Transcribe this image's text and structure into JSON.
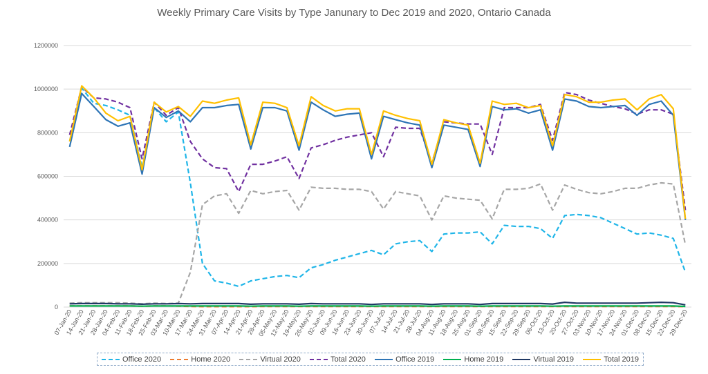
{
  "chart_data": {
    "type": "line",
    "title": "Weekly Primary Care Visits by Type Janunary to Dec 2019 and 2020, Ontario Canada",
    "xlabel": "",
    "ylabel": "",
    "ylim": [
      0,
      1200000
    ],
    "y_ticks": [
      "0",
      "200000",
      "400000",
      "600000",
      "800000",
      "1000000",
      "1200000"
    ],
    "grid": "horizontal",
    "legend_position": "bottom",
    "categories": [
      "07-Jan-20",
      "14-Jan-20",
      "21-Jan-20",
      "28-Jan-20",
      "04-Feb-20",
      "11-Feb-20",
      "18-Feb-20",
      "25-Feb-20",
      "03-Mar-20",
      "10-Mar-20",
      "17-Mar-20",
      "24-Mar-20",
      "31-Mar-20",
      "07-Apr-20",
      "14-Apr-20",
      "21-Apr-20",
      "28-Apr-20",
      "05-May-20",
      "12-May-20",
      "19-May-20",
      "26-May-20",
      "02-Jun-20",
      "09-Jun-20",
      "16-Jun-20",
      "23-Jun-20",
      "30-Jun-20",
      "07-Jul-20",
      "14-Jul-20",
      "21-Jul-20",
      "28-Jul-20",
      "04-Aug-20",
      "11-Aug-20",
      "18-Aug-20",
      "25-Aug-20",
      "01-Sep-20",
      "08-Sep-20",
      "15-Sep-20",
      "22-Sep-20",
      "29-Sep-20",
      "06-Oct-20",
      "13-Oct-20",
      "20-Oct-20",
      "27-Oct-20",
      "03-Nov-20",
      "10-Nov-20",
      "17-Nov-20",
      "24-Nov-20",
      "01-Dec-20",
      "08-Dec-20",
      "15-Dec-20",
      "22-Dec-20",
      "29-Dec-20"
    ],
    "series": [
      {
        "name": "Office 2020",
        "color": "#1fb5e8",
        "dash": "dashed",
        "values": [
          760000,
          1005000,
          935000,
          925000,
          905000,
          880000,
          640000,
          915000,
          850000,
          895000,
          570000,
          200000,
          120000,
          110000,
          95000,
          120000,
          130000,
          140000,
          145000,
          135000,
          180000,
          195000,
          215000,
          230000,
          245000,
          260000,
          240000,
          290000,
          300000,
          305000,
          255000,
          335000,
          340000,
          340000,
          345000,
          290000,
          375000,
          370000,
          370000,
          360000,
          315000,
          420000,
          425000,
          420000,
          410000,
          385000,
          360000,
          335000,
          340000,
          330000,
          315000,
          160000
        ]
      },
      {
        "name": "Home 2020",
        "color": "#ed7d31",
        "dash": "dashed",
        "values": [
          5000,
          5000,
          5000,
          5000,
          5000,
          5000,
          4000,
          5000,
          5000,
          4000,
          3000,
          2000,
          2000,
          2000,
          2000,
          2000,
          3000,
          3000,
          3000,
          3000,
          3000,
          3000,
          3000,
          3000,
          3000,
          3000,
          3000,
          3000,
          3000,
          3000,
          3000,
          3000,
          3000,
          3000,
          3000,
          3000,
          3000,
          3000,
          3000,
          3000,
          3000,
          3000,
          3000,
          3000,
          3000,
          3000,
          3000,
          3000,
          3000,
          3000,
          3000,
          2000
        ]
      },
      {
        "name": "Virtual 2020",
        "color": "#a6a6a6",
        "dash": "dashed",
        "values": [
          18000,
          20000,
          20000,
          20000,
          20000,
          18000,
          15000,
          18000,
          16000,
          18000,
          160000,
          470000,
          510000,
          520000,
          430000,
          535000,
          520000,
          530000,
          535000,
          445000,
          550000,
          545000,
          545000,
          540000,
          540000,
          530000,
          450000,
          530000,
          520000,
          510000,
          400000,
          510000,
          500000,
          495000,
          490000,
          405000,
          540000,
          540000,
          545000,
          565000,
          445000,
          560000,
          540000,
          525000,
          520000,
          530000,
          545000,
          545000,
          560000,
          570000,
          565000,
          285000
        ]
      },
      {
        "name": "Total 2020",
        "color": "#7030a0",
        "dash": "dashed",
        "values": [
          790000,
          1010000,
          960000,
          955000,
          940000,
          915000,
          680000,
          940000,
          880000,
          915000,
          760000,
          680000,
          640000,
          635000,
          530000,
          655000,
          655000,
          670000,
          690000,
          590000,
          730000,
          745000,
          765000,
          780000,
          790000,
          800000,
          690000,
          825000,
          820000,
          820000,
          660000,
          850000,
          845000,
          840000,
          840000,
          700000,
          915000,
          915000,
          915000,
          930000,
          765000,
          985000,
          975000,
          950000,
          935000,
          920000,
          910000,
          885000,
          905000,
          905000,
          885000,
          445000
        ]
      },
      {
        "name": "Office 2019",
        "color": "#2e75b6",
        "dash": "solid",
        "values": [
          735000,
          980000,
          920000,
          860000,
          830000,
          845000,
          610000,
          915000,
          870000,
          900000,
          850000,
          915000,
          915000,
          925000,
          930000,
          725000,
          915000,
          915000,
          900000,
          720000,
          940000,
          905000,
          875000,
          885000,
          890000,
          680000,
          875000,
          860000,
          845000,
          835000,
          640000,
          835000,
          825000,
          815000,
          645000,
          920000,
          905000,
          910000,
          890000,
          905000,
          720000,
          955000,
          945000,
          920000,
          915000,
          920000,
          925000,
          880000,
          930000,
          945000,
          880000,
          400000
        ]
      },
      {
        "name": "Home 2019",
        "color": "#00b050",
        "dash": "solid",
        "values": [
          5000,
          5000,
          5000,
          5000,
          5000,
          5000,
          4000,
          5000,
          5000,
          5000,
          5000,
          5000,
          5000,
          5000,
          5000,
          4000,
          5000,
          5000,
          5000,
          4000,
          5000,
          5000,
          5000,
          5000,
          5000,
          4000,
          5000,
          5000,
          5000,
          5000,
          4000,
          5000,
          5000,
          5000,
          4000,
          5000,
          5000,
          5000,
          5000,
          5000,
          4000,
          5000,
          5000,
          5000,
          5000,
          5000,
          5000,
          5000,
          5000,
          5000,
          5000,
          3000
        ]
      },
      {
        "name": "Virtual 2019",
        "color": "#1f3864",
        "dash": "solid",
        "values": [
          15000,
          16000,
          16000,
          16000,
          15000,
          15000,
          13000,
          15000,
          15000,
          16000,
          15000,
          16000,
          16000,
          16000,
          16000,
          13000,
          15000,
          15000,
          15000,
          13000,
          16000,
          15000,
          15000,
          15000,
          15000,
          12000,
          15000,
          15000,
          15000,
          15000,
          12000,
          15000,
          15000,
          15000,
          12000,
          16000,
          16000,
          16000,
          16000,
          16000,
          14000,
          22000,
          18000,
          18000,
          18000,
          18000,
          18000,
          18000,
          20000,
          22000,
          20000,
          10000
        ]
      },
      {
        "name": "Total 2019",
        "color": "#ffc000",
        "dash": "solid",
        "values": [
          760000,
          1015000,
          960000,
          890000,
          855000,
          875000,
          630000,
          940000,
          895000,
          920000,
          875000,
          945000,
          935000,
          950000,
          960000,
          745000,
          940000,
          935000,
          915000,
          740000,
          965000,
          925000,
          900000,
          910000,
          910000,
          700000,
          900000,
          880000,
          865000,
          855000,
          655000,
          860000,
          845000,
          835000,
          660000,
          945000,
          930000,
          935000,
          915000,
          925000,
          740000,
          975000,
          965000,
          940000,
          940000,
          950000,
          955000,
          905000,
          955000,
          975000,
          910000,
          405000
        ]
      }
    ]
  }
}
